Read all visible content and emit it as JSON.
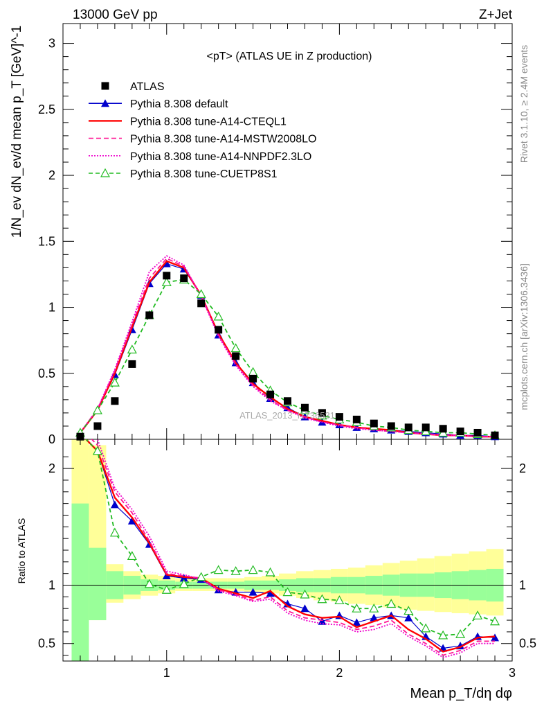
{
  "header": {
    "left": "13000 GeV pp",
    "right": "Z+Jet"
  },
  "side_labels": {
    "rivet": "Rivet 3.1.10, ≥ 2.4M events",
    "source": "mcplots.cern.ch [arXiv:1306.3436]"
  },
  "colors": {
    "atlas": "#000000",
    "default": "#0000cc",
    "cteql1": "#ff0000",
    "mstw": "#ff1493",
    "nnpdf": "#ee00cc",
    "cuetp8s1": "#22bb22",
    "band_inner": "#99ff99",
    "band_outer": "#ffff99"
  },
  "chart_data": [
    {
      "type": "scatter",
      "title": "<pT> (ATLAS UE in Z production)",
      "ylabel": "1/N_ev dN_ev/d mean p_T [GeV]^-1",
      "xlim": [
        0.4,
        3.0
      ],
      "ylim": [
        0,
        3.15
      ],
      "yticks": [
        "0",
        "0.5",
        "1",
        "1.5",
        "2",
        "2.5",
        "3"
      ],
      "watermark": "ATLAS_2013_I1736531",
      "x": [
        0.5,
        0.6,
        0.7,
        0.8,
        0.9,
        1.0,
        1.1,
        1.2,
        1.3,
        1.4,
        1.5,
        1.6,
        1.7,
        1.8,
        1.9,
        2.0,
        2.1,
        2.2,
        2.3,
        2.4,
        2.5,
        2.6,
        2.7,
        2.8,
        2.9
      ],
      "series": [
        {
          "name": "ATLAS",
          "key": "atlas",
          "marker": "square",
          "values": [
            0.02,
            0.1,
            0.29,
            0.57,
            0.94,
            1.24,
            1.22,
            1.03,
            0.83,
            0.63,
            0.46,
            0.34,
            0.29,
            0.24,
            0.2,
            0.17,
            0.15,
            0.12,
            0.1,
            0.09,
            0.09,
            0.08,
            0.06,
            0.05,
            0.03
          ]
        },
        {
          "name": "Pythia 8.308 default",
          "key": "default",
          "marker": "triangle",
          "values": [
            0.05,
            0.22,
            0.49,
            0.83,
            1.18,
            1.33,
            1.29,
            1.09,
            0.79,
            0.58,
            0.43,
            0.31,
            0.24,
            0.17,
            0.13,
            0.11,
            0.09,
            0.08,
            0.07,
            0.06,
            0.05,
            0.04,
            0.03,
            0.03,
            0.02
          ]
        },
        {
          "name": "Pythia 8.308 tune-A14-CTEQL1",
          "key": "cteql1",
          "marker": "none",
          "dash": "",
          "values": [
            0.05,
            0.22,
            0.5,
            0.85,
            1.19,
            1.35,
            1.3,
            1.09,
            0.8,
            0.58,
            0.42,
            0.32,
            0.23,
            0.17,
            0.14,
            0.11,
            0.09,
            0.08,
            0.07,
            0.05,
            0.04,
            0.03,
            0.03,
            0.02,
            0.02
          ]
        },
        {
          "name": "Pythia 8.308 tune-A14-MSTW2008LO",
          "key": "mstw",
          "marker": "none",
          "dash": "7,4",
          "values": [
            0.05,
            0.23,
            0.52,
            0.87,
            1.22,
            1.37,
            1.31,
            1.09,
            0.79,
            0.57,
            0.41,
            0.3,
            0.22,
            0.17,
            0.13,
            0.11,
            0.09,
            0.07,
            0.06,
            0.05,
            0.04,
            0.03,
            0.03,
            0.02,
            0.02
          ]
        },
        {
          "name": "Pythia 8.308 tune-A14-NNPDF2.3LO",
          "key": "nnpdf",
          "marker": "none",
          "dash": "2,2",
          "values": [
            0.05,
            0.23,
            0.53,
            0.89,
            1.27,
            1.39,
            1.32,
            1.08,
            0.78,
            0.56,
            0.4,
            0.29,
            0.22,
            0.16,
            0.13,
            0.1,
            0.08,
            0.07,
            0.06,
            0.05,
            0.04,
            0.03,
            0.03,
            0.02,
            0.02
          ]
        },
        {
          "name": "Pythia 8.308 tune-CUETP8S1",
          "key": "cuetp8s1",
          "marker": "open-triangle",
          "dash": "6,4",
          "values": [
            0.05,
            0.22,
            0.43,
            0.68,
            0.94,
            1.19,
            1.21,
            1.1,
            0.93,
            0.69,
            0.51,
            0.37,
            0.28,
            0.22,
            0.18,
            0.15,
            0.13,
            0.1,
            0.09,
            0.07,
            0.06,
            0.05,
            0.05,
            0.04,
            0.03
          ]
        }
      ]
    },
    {
      "type": "line",
      "ylabel": "Ratio to ATLAS",
      "xlabel": "Mean p_T/dη dφ",
      "xlim": [
        0.4,
        3.0
      ],
      "ylim": [
        0.35,
        2.25
      ],
      "xticks": [
        "1",
        "2",
        "3"
      ],
      "yticks": [
        "0.5",
        "1",
        "2"
      ],
      "x": [
        0.5,
        0.6,
        0.7,
        0.8,
        0.9,
        1.0,
        1.1,
        1.2,
        1.3,
        1.4,
        1.5,
        1.6,
        1.7,
        1.8,
        1.9,
        2.0,
        2.1,
        2.2,
        2.3,
        2.4,
        2.5,
        2.6,
        2.7,
        2.8,
        2.9
      ],
      "band_edges": [
        0.45,
        0.55,
        0.65,
        0.75,
        0.85,
        0.95,
        1.05,
        1.15,
        1.25,
        1.35,
        1.45,
        1.55,
        1.65,
        1.75,
        1.85,
        1.95,
        2.05,
        2.15,
        2.25,
        2.35,
        2.45,
        2.55,
        2.65,
        2.75,
        2.85,
        2.95
      ],
      "band_inner": [
        [
          0.3,
          1.7
        ],
        [
          0.7,
          1.32
        ],
        [
          0.88,
          1.12
        ],
        [
          0.92,
          1.08
        ],
        [
          0.95,
          1.05
        ],
        [
          0.96,
          1.04
        ],
        [
          0.97,
          1.03
        ],
        [
          0.97,
          1.03
        ],
        [
          0.97,
          1.03
        ],
        [
          0.97,
          1.03
        ],
        [
          0.96,
          1.04
        ],
        [
          0.96,
          1.04
        ],
        [
          0.95,
          1.05
        ],
        [
          0.94,
          1.06
        ],
        [
          0.94,
          1.06
        ],
        [
          0.93,
          1.07
        ],
        [
          0.93,
          1.07
        ],
        [
          0.92,
          1.08
        ],
        [
          0.91,
          1.09
        ],
        [
          0.9,
          1.1
        ],
        [
          0.9,
          1.1
        ],
        [
          0.89,
          1.11
        ],
        [
          0.88,
          1.12
        ],
        [
          0.87,
          1.13
        ],
        [
          0.86,
          1.14
        ]
      ],
      "band_outer": [
        [
          0.3,
          2.3
        ],
        [
          0.7,
          2.2
        ],
        [
          0.85,
          1.18
        ],
        [
          0.88,
          1.12
        ],
        [
          0.91,
          1.09
        ],
        [
          0.93,
          1.08
        ],
        [
          0.95,
          1.06
        ],
        [
          0.95,
          1.06
        ],
        [
          0.95,
          1.06
        ],
        [
          0.95,
          1.06
        ],
        [
          0.94,
          1.07
        ],
        [
          0.93,
          1.08
        ],
        [
          0.91,
          1.1
        ],
        [
          0.89,
          1.12
        ],
        [
          0.87,
          1.13
        ],
        [
          0.86,
          1.14
        ],
        [
          0.84,
          1.15
        ],
        [
          0.83,
          1.17
        ],
        [
          0.81,
          1.19
        ],
        [
          0.79,
          1.21
        ],
        [
          0.78,
          1.23
        ],
        [
          0.77,
          1.25
        ],
        [
          0.76,
          1.27
        ],
        [
          0.75,
          1.29
        ],
        [
          0.74,
          1.31
        ]
      ],
      "series": [
        {
          "name": "Pythia 8.308 default",
          "key": "default",
          "marker": "triangle",
          "values": [
            2.3,
            2.15,
            1.69,
            1.55,
            1.35,
            1.08,
            1.06,
            1.05,
            0.96,
            0.94,
            0.94,
            0.93,
            0.84,
            0.8,
            0.69,
            0.74,
            0.68,
            0.72,
            0.74,
            0.72,
            0.56,
            0.46,
            0.48,
            0.56,
            0.55
          ]
        },
        {
          "name": "Pythia 8.308 tune-A14-CTEQL1",
          "key": "cteql1",
          "marker": "none",
          "dash": "",
          "values": [
            2.3,
            2.15,
            1.75,
            1.58,
            1.36,
            1.09,
            1.07,
            1.06,
            0.97,
            0.93,
            0.89,
            0.95,
            0.82,
            0.75,
            0.72,
            0.73,
            0.64,
            0.69,
            0.74,
            0.62,
            0.54,
            0.43,
            0.47,
            0.55,
            0.56
          ]
        },
        {
          "name": "Pythia 8.308 tune-A14-MSTW2008LO",
          "key": "mstw",
          "marker": "none",
          "dash": "7,4",
          "values": [
            2.35,
            2.2,
            1.8,
            1.62,
            1.38,
            1.1,
            1.08,
            1.06,
            0.96,
            0.92,
            0.87,
            0.9,
            0.78,
            0.72,
            0.7,
            0.68,
            0.62,
            0.65,
            0.7,
            0.58,
            0.5,
            0.4,
            0.44,
            0.52,
            0.52
          ]
        },
        {
          "name": "Pythia 8.308 tune-A14-NNPDF2.3LO",
          "key": "nnpdf",
          "marker": "none",
          "dash": "2,2",
          "values": [
            2.4,
            2.25,
            1.83,
            1.65,
            1.42,
            1.12,
            1.09,
            1.05,
            0.95,
            0.91,
            0.86,
            0.88,
            0.76,
            0.7,
            0.67,
            0.66,
            0.6,
            0.62,
            0.67,
            0.56,
            0.48,
            0.38,
            0.42,
            0.5,
            0.5
          ]
        },
        {
          "name": "Pythia 8.308 tune-CUETP8S1",
          "key": "cuetp8s1",
          "marker": "open-triangle",
          "dash": "6,4",
          "values": [
            2.3,
            2.15,
            1.45,
            1.25,
            1.01,
            0.96,
            1.01,
            1.07,
            1.13,
            1.12,
            1.13,
            1.11,
            0.94,
            0.92,
            0.88,
            0.87,
            0.8,
            0.8,
            0.84,
            0.78,
            0.63,
            0.57,
            0.58,
            0.74,
            0.69
          ]
        }
      ]
    }
  ]
}
